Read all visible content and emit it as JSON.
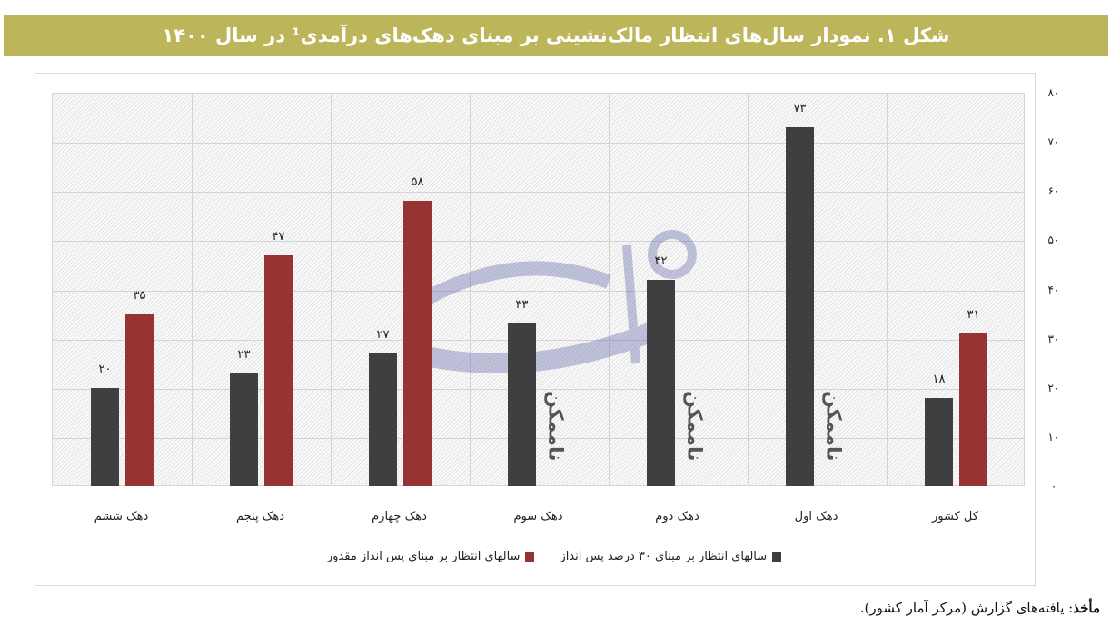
{
  "figure": {
    "title": "شکل ۱. نمودار سال‌های انتظار مالک‌نشینی بر مبنای دهک‌های درآمدی¹ در سال ۱۴۰۰",
    "header_color": "#bcb55a"
  },
  "source": {
    "label": "مأخذ",
    "text": ": یافته‌های گزارش (مرکز آمار کشور)."
  },
  "legend": {
    "series_dark": "سالهای انتظار بر مبنای ۳۰ درصد پس انداز",
    "series_red": "سالهای انتظار بر مبنای پس انداز مقدور"
  },
  "not_possible_label": "ناممکن",
  "y_ticks": [
    "۰",
    "۱۰",
    "۲۰",
    "۳۰",
    "۴۰",
    "۵۰",
    "۶۰",
    "۷۰",
    "۸۰"
  ],
  "categories_display": [
    "کل کشور",
    "دهک اول",
    "دهک دوم",
    "دهک سوم",
    "دهک چهارم",
    "دهک پنجم",
    "دهک ششم"
  ],
  "labels_dark": [
    "۱۸",
    "۷۳",
    "۴۲",
    "۳۳",
    "۲۷",
    "۲۳",
    "۲۰"
  ],
  "labels_red": [
    "۳۱",
    "",
    "",
    "",
    "۵۸",
    "۴۷",
    "۳۵"
  ],
  "chart_data": {
    "type": "bar",
    "title": "شکل ۱. نمودار سال‌های انتظار مالک‌نشینی بر مبنای دهک‌های درآمدی در سال ۱۴۰۰",
    "xlabel": "",
    "ylabel": "",
    "ylim": [
      0,
      80
    ],
    "y_tick_step": 10,
    "grid": true,
    "legend_position": "bottom",
    "direction": "rtl",
    "categories": [
      "کل کشور",
      "دهک اول",
      "دهک دوم",
      "دهک سوم",
      "دهک چهارم",
      "دهک پنجم",
      "دهک ششم"
    ],
    "series": [
      {
        "name": "سالهای انتظار بر مبنای ۳۰ درصد پس انداز",
        "color": "#3f3f3f",
        "values": [
          18,
          73,
          42,
          33,
          27,
          23,
          20
        ]
      },
      {
        "name": "سالهای انتظار بر مبنای پس انداز مقدور",
        "color": "#983333",
        "values": [
          31,
          null,
          null,
          null,
          58,
          47,
          35
        ]
      }
    ],
    "annotations": [
      {
        "category": "دهک اول",
        "series": 2,
        "text": "ناممکن"
      },
      {
        "category": "دهک دوم",
        "series": 2,
        "text": "ناممکن"
      },
      {
        "category": "دهک سوم",
        "series": 2,
        "text": "ناممکن"
      }
    ]
  }
}
